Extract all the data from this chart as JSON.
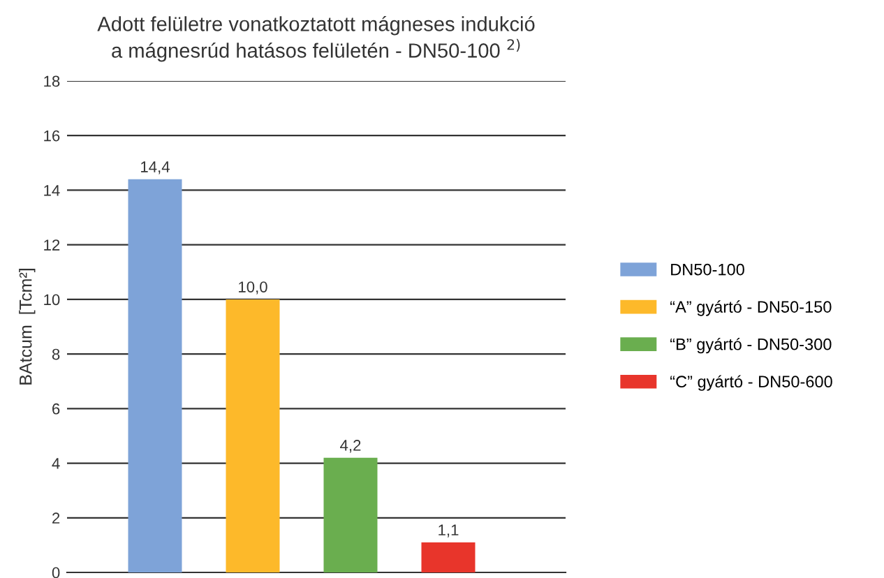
{
  "chart_data": {
    "type": "bar",
    "title": "Adott felületre vonatkoztatott mágneses indukció\na mágnesrúd hatásos felületén - DN50-100 $^{2)}$",
    "ylabel": "BAtcum  [Tcm²]",
    "categories": [
      null,
      null,
      null,
      null
    ],
    "series": [
      {
        "name": "DN50-100",
        "color": "#7ea3d8",
        "values": [
          14.4,
          null,
          null,
          null
        ],
        "value_labels": [
          "14,4",
          null,
          null,
          null
        ]
      },
      {
        "name": "“A” gyártó - DN50-150",
        "color": "#fdb92a",
        "values": [
          null,
          10.0,
          null,
          null
        ],
        "value_labels": [
          null,
          "10,0",
          null,
          null
        ]
      },
      {
        "name": "“B” gyártó - DN50-300",
        "color": "#6aae4f",
        "values": [
          null,
          null,
          4.2,
          null
        ],
        "value_labels": [
          null,
          null,
          "4,2",
          null
        ]
      },
      {
        "name": "“C” gyártó - DN50-600",
        "color": "#e8352b",
        "values": [
          null,
          null,
          null,
          1.1
        ],
        "value_labels": [
          null,
          null,
          null,
          "1,1"
        ]
      }
    ],
    "ylim": [
      0,
      18
    ],
    "yticks": [
      0,
      2,
      4,
      6,
      8,
      10,
      12,
      14,
      16,
      18
    ],
    "grid": "y",
    "legend": "right"
  }
}
